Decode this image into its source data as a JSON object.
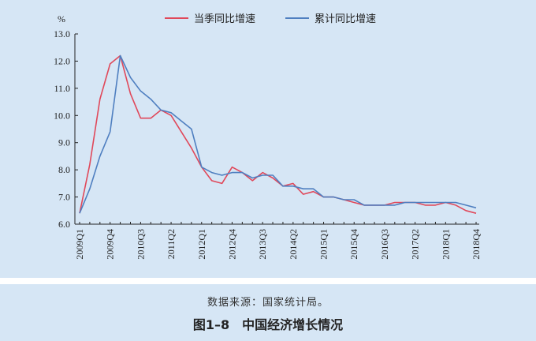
{
  "chart_data": {
    "type": "line",
    "title": "",
    "ylabel": "%",
    "xlabel": "",
    "ylim": [
      6.0,
      13.0
    ],
    "yticks": [
      "6.0",
      "7.0",
      "8.0",
      "9.0",
      "10.0",
      "11.0",
      "12.0",
      "13.0"
    ],
    "x": [
      "2009Q1",
      "2009Q2",
      "2009Q3",
      "2009Q4",
      "2010Q1",
      "2010Q2",
      "2010Q3",
      "2010Q4",
      "2011Q1",
      "2011Q2",
      "2011Q3",
      "2011Q4",
      "2012Q1",
      "2012Q2",
      "2012Q3",
      "2012Q4",
      "2013Q1",
      "2013Q2",
      "2013Q3",
      "2013Q4",
      "2014Q1",
      "2014Q2",
      "2014Q3",
      "2014Q4",
      "2015Q1",
      "2015Q2",
      "2015Q3",
      "2015Q4",
      "2016Q1",
      "2016Q2",
      "2016Q3",
      "2016Q4",
      "2017Q1",
      "2017Q2",
      "2017Q3",
      "2017Q4",
      "2018Q1",
      "2018Q2",
      "2018Q3",
      "2018Q4"
    ],
    "xtick_labels": [
      "2009Q1",
      "2009Q4",
      "2010Q3",
      "2011Q2",
      "2012Q1",
      "2012Q4",
      "2013Q3",
      "2014Q2",
      "2015Q1",
      "2015Q4",
      "2016Q3",
      "2017Q2",
      "2018Q1",
      "2018Q4"
    ],
    "legend_placement": "top",
    "grid": false,
    "series": [
      {
        "name": "当季同比增速",
        "color": "#e0485a",
        "values": [
          6.4,
          8.2,
          10.6,
          11.9,
          12.2,
          10.8,
          9.9,
          9.9,
          10.2,
          10.0,
          9.4,
          8.8,
          8.1,
          7.6,
          7.5,
          8.1,
          7.9,
          7.6,
          7.9,
          7.7,
          7.4,
          7.5,
          7.1,
          7.2,
          7.0,
          7.0,
          6.9,
          6.8,
          6.7,
          6.7,
          6.7,
          6.8,
          6.8,
          6.8,
          6.7,
          6.7,
          6.8,
          6.7,
          6.5,
          6.4
        ]
      },
      {
        "name": "累计同比增速",
        "color": "#4f7fc0",
        "values": [
          6.4,
          7.3,
          8.5,
          9.4,
          12.2,
          11.4,
          10.9,
          10.6,
          10.2,
          10.1,
          9.8,
          9.5,
          8.1,
          7.9,
          7.8,
          7.9,
          7.9,
          7.7,
          7.8,
          7.8,
          7.4,
          7.4,
          7.3,
          7.3,
          7.0,
          7.0,
          6.9,
          6.9,
          6.7,
          6.7,
          6.7,
          6.7,
          6.8,
          6.8,
          6.8,
          6.8,
          6.8,
          6.8,
          6.7,
          6.6
        ]
      }
    ]
  },
  "caption": {
    "source": "数据来源：国家统计局。",
    "figure_title": "图1–8　中国经济增长情况"
  }
}
